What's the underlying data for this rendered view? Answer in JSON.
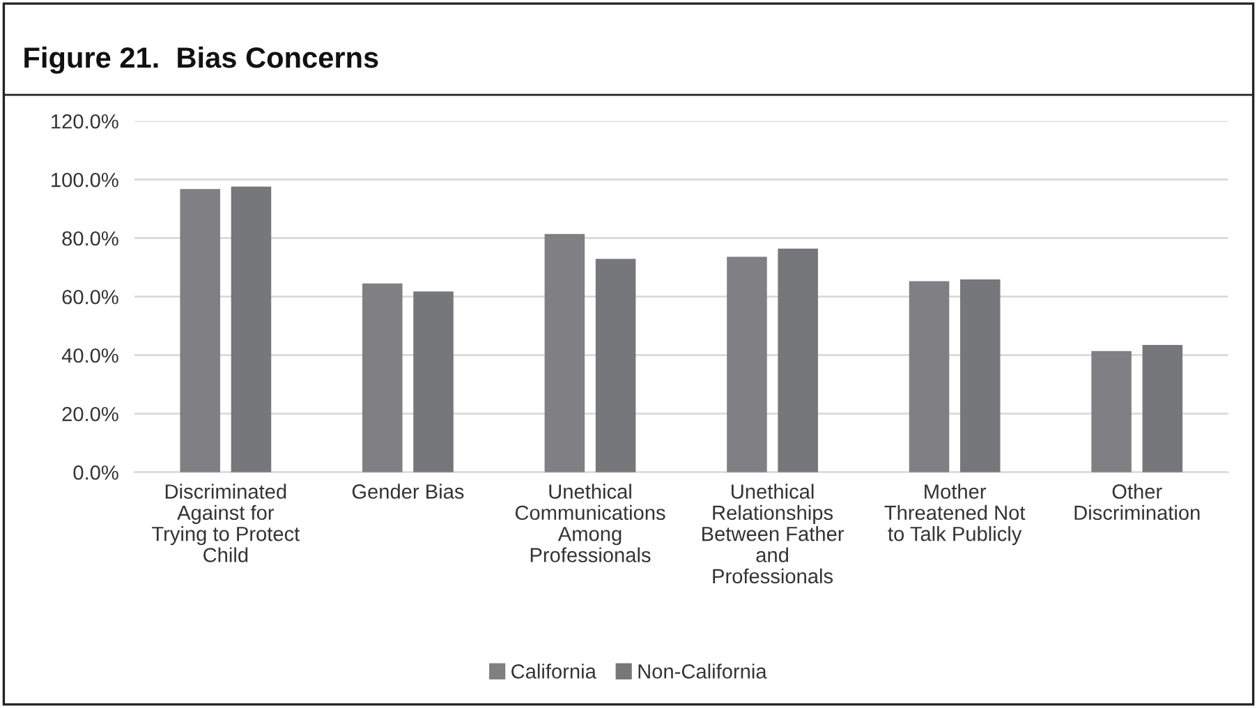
{
  "chart_data": {
    "type": "bar",
    "title": "Figure 21.  Bias Concerns",
    "categories": [
      "Discriminated\nAgainst for\nTrying to Protect\nChild",
      "Gender Bias",
      "Unethical\nCommunications\nAmong\nProfessionals",
      "Unethical\nRelationships\nBetween Father\nand\nProfessionals",
      "Mother\nThreatened Not\nto Talk Publicly",
      "Other\nDiscrimination"
    ],
    "series": [
      {
        "name": "California",
        "color": "#808084",
        "values": [
          96.8,
          64.5,
          81.4,
          73.6,
          65.3,
          41.4
        ]
      },
      {
        "name": "Non-California",
        "color": "#76777b",
        "values": [
          97.6,
          61.8,
          72.9,
          76.4,
          65.9,
          43.5
        ]
      }
    ],
    "ylim": [
      0,
      120
    ],
    "yticks": [
      {
        "value": 0,
        "label": "0.0%"
      },
      {
        "value": 20,
        "label": "20.0%"
      },
      {
        "value": 40,
        "label": "40.0%"
      },
      {
        "value": 60,
        "label": "60.0%"
      },
      {
        "value": 80,
        "label": "80.0%"
      },
      {
        "value": 100,
        "label": "100.0%"
      },
      {
        "value": 120,
        "label": "120.0%"
      }
    ],
    "grid": "y",
    "legend": "bottom"
  }
}
